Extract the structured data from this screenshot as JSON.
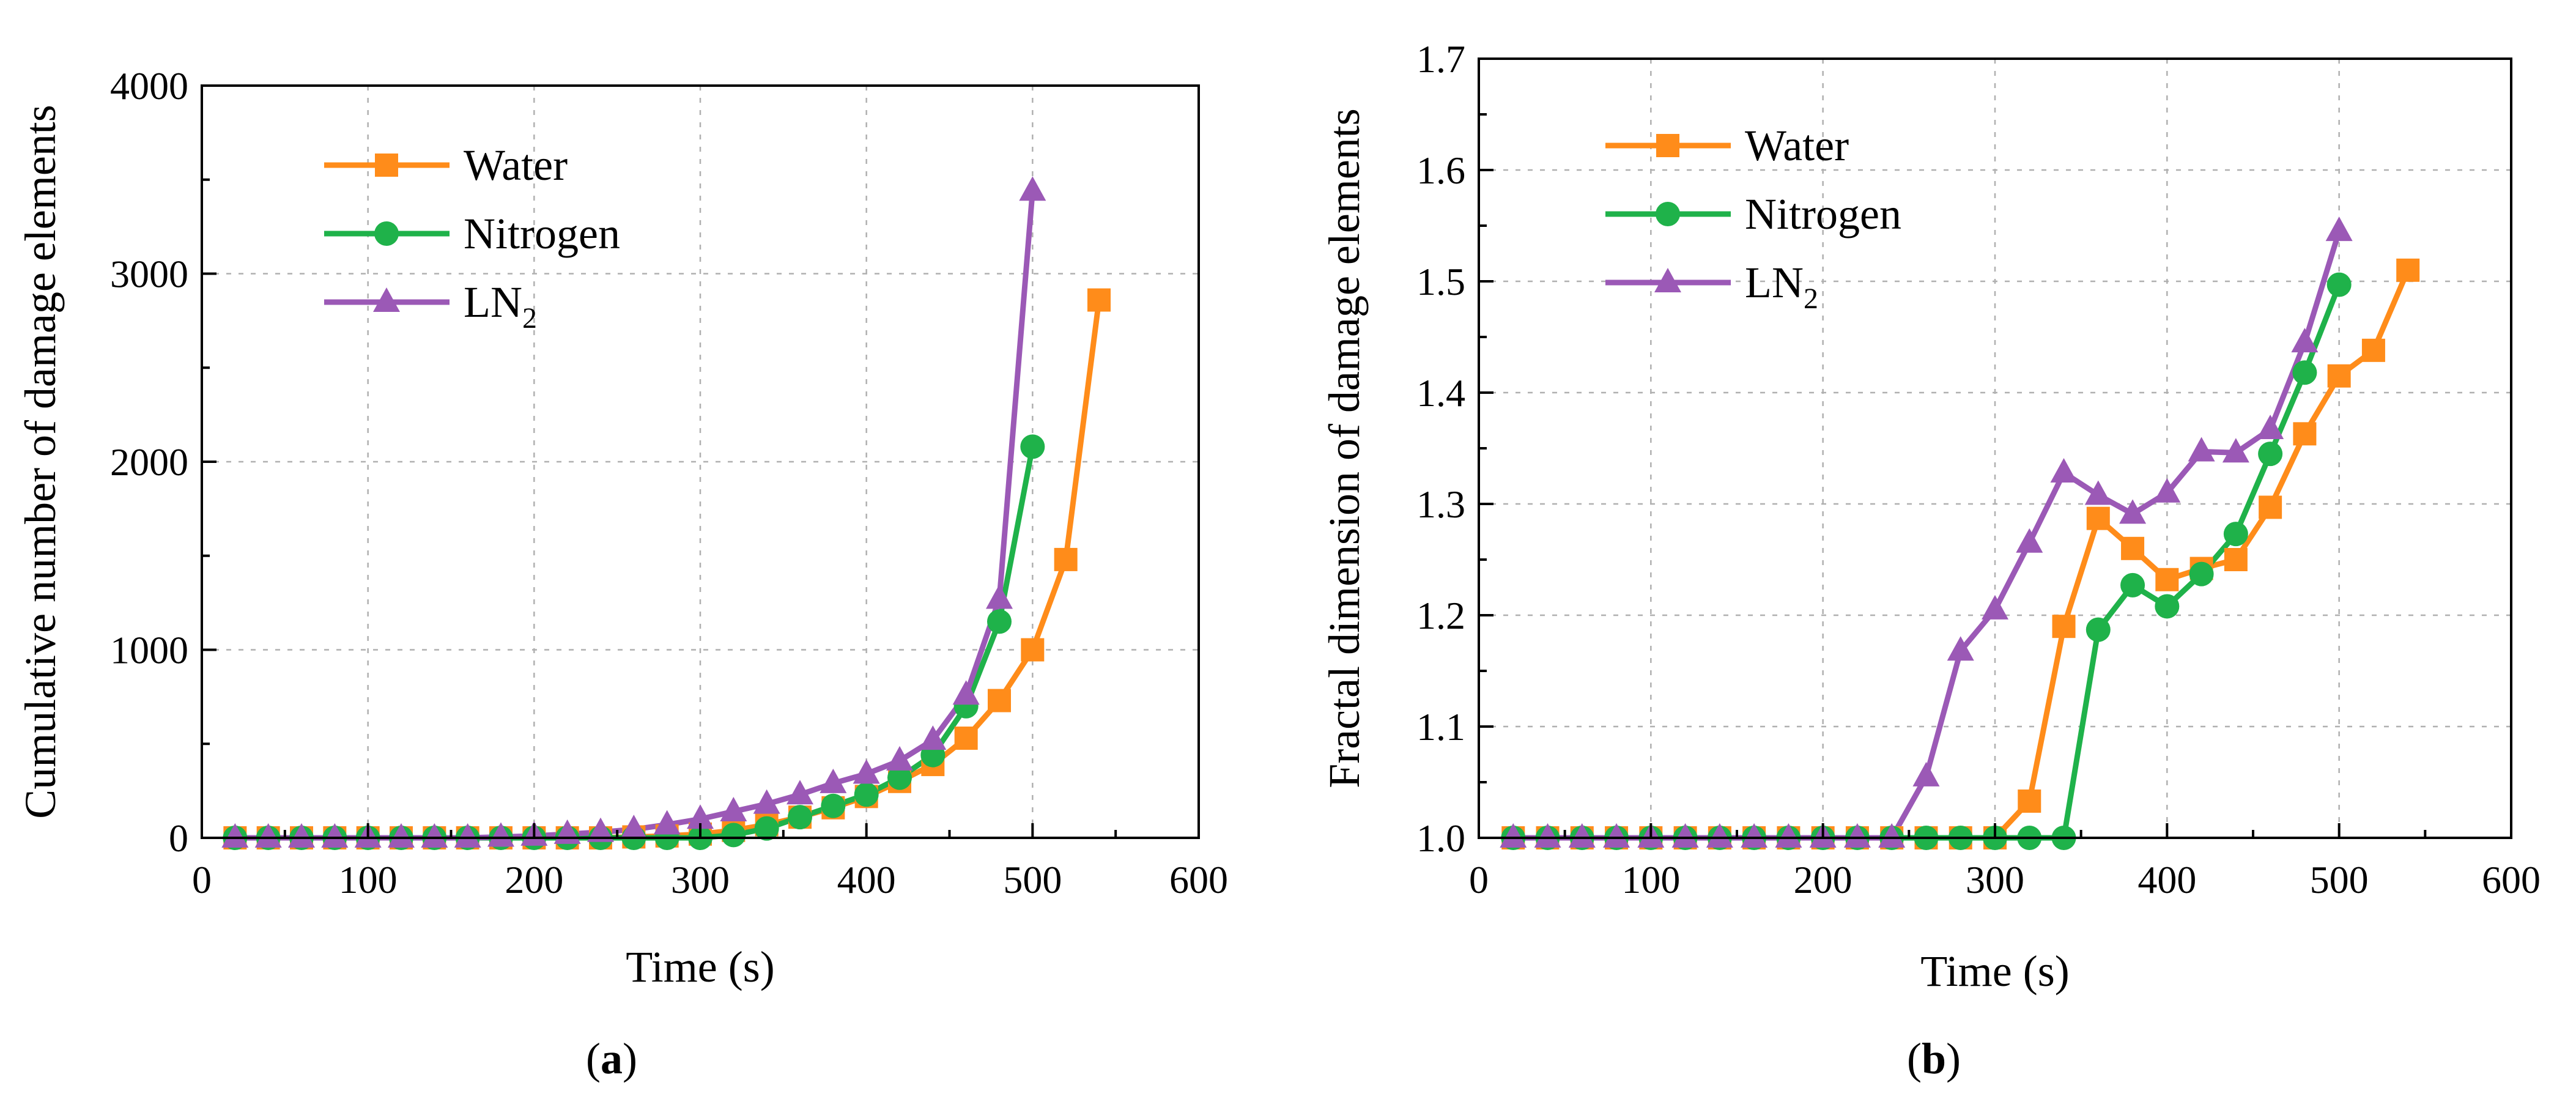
{
  "colors": {
    "water": "#ff8c1a",
    "nitrogen": "#1fb24a",
    "ln2": "#9b59b6",
    "axis": "#000000",
    "grid": "#b0b0b0"
  },
  "chart_data": [
    {
      "type": "line",
      "panel_label": "a",
      "xlabel": "Time (s)",
      "ylabel": "Cumulative number of damage elements",
      "xlim": [
        0,
        600
      ],
      "ylim": [
        0,
        4000
      ],
      "xticks": [
        0,
        100,
        200,
        300,
        400,
        500,
        600
      ],
      "yticks": [
        0,
        1000,
        2000,
        3000,
        4000
      ],
      "grid": true,
      "legend_position": "top-left",
      "series": [
        {
          "name": "Water",
          "subscript": "",
          "marker": "square",
          "color_key": "water",
          "x": [
            20,
            40,
            60,
            80,
            100,
            120,
            140,
            160,
            180,
            200,
            220,
            240,
            260,
            280,
            300,
            320,
            340,
            360,
            380,
            400,
            420,
            440,
            460,
            480,
            500,
            520,
            540
          ],
          "y": [
            0,
            0,
            0,
            0,
            0,
            0,
            0,
            0,
            0,
            0,
            0,
            0,
            5,
            10,
            20,
            40,
            70,
            110,
            160,
            220,
            300,
            390,
            530,
            730,
            1000,
            1480,
            2860
          ]
        },
        {
          "name": "Nitrogen",
          "subscript": "",
          "marker": "circle",
          "color_key": "nitrogen",
          "x": [
            20,
            40,
            60,
            80,
            100,
            120,
            140,
            160,
            180,
            200,
            220,
            240,
            260,
            280,
            300,
            320,
            340,
            360,
            380,
            400,
            420,
            440,
            460,
            480,
            500
          ],
          "y": [
            0,
            0,
            0,
            0,
            0,
            0,
            0,
            0,
            0,
            0,
            0,
            0,
            0,
            0,
            0,
            15,
            50,
            110,
            170,
            230,
            320,
            440,
            700,
            1150,
            2080
          ]
        },
        {
          "name": "LN",
          "subscript": "2",
          "marker": "triangle",
          "color_key": "ln2",
          "x": [
            20,
            40,
            60,
            80,
            100,
            120,
            140,
            160,
            180,
            200,
            220,
            240,
            260,
            280,
            300,
            320,
            340,
            360,
            380,
            400,
            420,
            440,
            460,
            480,
            500
          ],
          "y": [
            0,
            0,
            0,
            0,
            0,
            0,
            0,
            0,
            5,
            10,
            20,
            30,
            45,
            70,
            100,
            140,
            180,
            230,
            290,
            340,
            410,
            520,
            760,
            1270,
            3440
          ]
        }
      ]
    },
    {
      "type": "line",
      "panel_label": "b",
      "xlabel": "Time (s)",
      "ylabel": "Fractal dimension of damage elements",
      "xlim": [
        0,
        600
      ],
      "ylim": [
        1.0,
        1.7
      ],
      "xticks": [
        0,
        100,
        200,
        300,
        400,
        500,
        600
      ],
      "yticks": [
        1.0,
        1.1,
        1.2,
        1.3,
        1.4,
        1.5,
        1.6,
        1.7
      ],
      "grid": true,
      "legend_position": "top-left",
      "series": [
        {
          "name": "Water",
          "subscript": "",
          "marker": "square",
          "color_key": "water",
          "x": [
            20,
            40,
            60,
            80,
            100,
            120,
            140,
            160,
            180,
            200,
            220,
            240,
            260,
            280,
            300,
            320,
            340,
            360,
            380,
            400,
            420,
            440,
            460,
            480,
            500,
            520,
            540
          ],
          "y": [
            1.0,
            1.0,
            1.0,
            1.0,
            1.0,
            1.0,
            1.0,
            1.0,
            1.0,
            1.0,
            1.0,
            1.0,
            1.0,
            1.0,
            1.0,
            1.033,
            1.19,
            1.287,
            1.26,
            1.232,
            1.242,
            1.25,
            1.297,
            1.363,
            1.415,
            1.438,
            1.51
          ]
        },
        {
          "name": "Nitrogen",
          "subscript": "",
          "marker": "circle",
          "color_key": "nitrogen",
          "x": [
            20,
            40,
            60,
            80,
            100,
            120,
            140,
            160,
            180,
            200,
            220,
            240,
            260,
            280,
            300,
            320,
            340,
            360,
            380,
            400,
            420,
            440,
            460,
            480,
            500
          ],
          "y": [
            1.0,
            1.0,
            1.0,
            1.0,
            1.0,
            1.0,
            1.0,
            1.0,
            1.0,
            1.0,
            1.0,
            1.0,
            1.0,
            1.0,
            1.0,
            1.0,
            1.0,
            1.187,
            1.227,
            1.208,
            1.237,
            1.273,
            1.345,
            1.418,
            1.497
          ]
        },
        {
          "name": "LN",
          "subscript": "2",
          "marker": "triangle",
          "color_key": "ln2",
          "x": [
            20,
            40,
            60,
            80,
            100,
            120,
            140,
            160,
            180,
            200,
            220,
            240,
            260,
            280,
            300,
            320,
            340,
            360,
            380,
            400,
            420,
            440,
            460,
            480,
            500
          ],
          "y": [
            1.0,
            1.0,
            1.0,
            1.0,
            1.0,
            1.0,
            1.0,
            1.0,
            1.0,
            1.0,
            1.0,
            1.0,
            1.055,
            1.168,
            1.205,
            1.265,
            1.328,
            1.308,
            1.291,
            1.31,
            1.347,
            1.346,
            1.367,
            1.445,
            1.545
          ]
        }
      ]
    }
  ]
}
